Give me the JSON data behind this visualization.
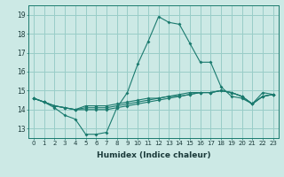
{
  "xlabel": "Humidex (Indice chaleur)",
  "xlim": [
    -0.5,
    23.5
  ],
  "ylim": [
    12.5,
    19.5
  ],
  "xticks": [
    0,
    1,
    2,
    3,
    4,
    5,
    6,
    7,
    8,
    9,
    10,
    11,
    12,
    13,
    14,
    15,
    16,
    17,
    18,
    19,
    20,
    21,
    22,
    23
  ],
  "yticks": [
    13,
    14,
    15,
    16,
    17,
    18,
    19
  ],
  "background_color": "#cce9e5",
  "grid_color": "#99cdc8",
  "line_color": "#1a7a6e",
  "lines": [
    {
      "x": [
        0,
        1,
        2,
        3,
        4,
        5,
        6,
        7,
        8,
        9,
        10,
        11,
        12,
        13,
        14,
        15,
        16,
        17,
        18,
        19,
        20,
        21,
        22,
        23
      ],
      "y": [
        14.6,
        14.4,
        14.1,
        13.7,
        13.5,
        12.7,
        12.7,
        12.8,
        14.1,
        14.9,
        16.4,
        17.6,
        18.9,
        18.6,
        18.5,
        17.5,
        16.5,
        16.5,
        15.2,
        14.7,
        14.6,
        14.3,
        14.9,
        14.8
      ]
    },
    {
      "x": [
        0,
        1,
        2,
        3,
        4,
        5,
        6,
        7,
        8,
        9,
        10,
        11,
        12,
        13,
        14,
        15,
        16,
        17,
        18,
        19,
        20,
        21,
        22,
        23
      ],
      "y": [
        14.6,
        14.4,
        14.2,
        14.1,
        14.0,
        14.0,
        14.0,
        14.0,
        14.1,
        14.2,
        14.3,
        14.4,
        14.5,
        14.6,
        14.7,
        14.8,
        14.9,
        14.9,
        15.0,
        14.9,
        14.7,
        14.3,
        14.7,
        14.8
      ]
    },
    {
      "x": [
        0,
        1,
        2,
        3,
        4,
        5,
        6,
        7,
        8,
        9,
        10,
        11,
        12,
        13,
        14,
        15,
        16,
        17,
        18,
        19,
        20,
        21,
        22,
        23
      ],
      "y": [
        14.6,
        14.4,
        14.2,
        14.1,
        14.0,
        14.1,
        14.1,
        14.1,
        14.2,
        14.3,
        14.4,
        14.5,
        14.6,
        14.7,
        14.7,
        14.8,
        14.9,
        14.9,
        15.0,
        14.9,
        14.7,
        14.3,
        14.7,
        14.8
      ]
    },
    {
      "x": [
        0,
        1,
        2,
        3,
        4,
        5,
        6,
        7,
        8,
        9,
        10,
        11,
        12,
        13,
        14,
        15,
        16,
        17,
        18,
        19,
        20,
        21,
        22,
        23
      ],
      "y": [
        14.6,
        14.4,
        14.2,
        14.1,
        14.0,
        14.2,
        14.2,
        14.2,
        14.3,
        14.4,
        14.5,
        14.6,
        14.6,
        14.7,
        14.8,
        14.9,
        14.9,
        14.9,
        15.0,
        14.9,
        14.7,
        14.3,
        14.7,
        14.8
      ]
    }
  ]
}
